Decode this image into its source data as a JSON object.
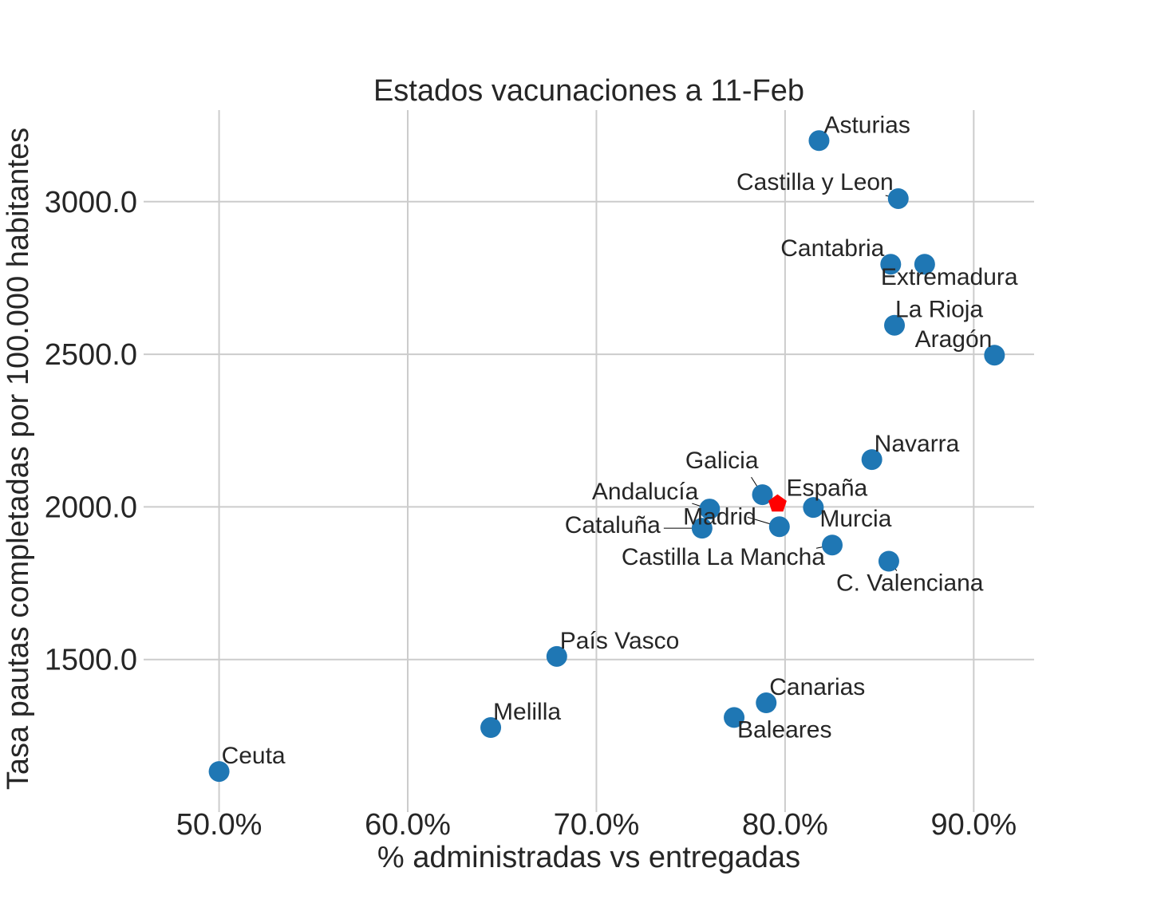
{
  "chart_data": {
    "type": "scatter",
    "title": "Estados vacunaciones a 11-Feb",
    "xlabel": "% administradas vs entregadas",
    "ylabel": "Tasa pautas completadas por 100.000 habitantes",
    "xlim": [
      46,
      93.2
    ],
    "ylim": [
      1000,
      3300
    ],
    "x_ticks": [
      50,
      60,
      70,
      80,
      90
    ],
    "x_tick_labels": [
      "50.0%",
      "60.0%",
      "70.0%",
      "80.0%",
      "90.0%"
    ],
    "y_ticks": [
      1500,
      2000,
      2500,
      3000
    ],
    "y_tick_labels": [
      "1500.0",
      "2000.0",
      "2500.0",
      "3000.0"
    ],
    "grid": true,
    "colors": {
      "point": "#1f77b4",
      "highlight": "#ff0000"
    },
    "points": [
      {
        "label": "Asturias",
        "x": 81.8,
        "y": 3200,
        "highlight": false
      },
      {
        "label": "Castilla y Leon",
        "x": 86.0,
        "y": 3010,
        "highlight": false
      },
      {
        "label": "Cantabria",
        "x": 85.6,
        "y": 2795,
        "highlight": false
      },
      {
        "label": "Extremadura",
        "x": 87.4,
        "y": 2795,
        "highlight": false
      },
      {
        "label": "La Rioja",
        "x": 85.8,
        "y": 2595,
        "highlight": false
      },
      {
        "label": "Aragón",
        "x": 91.1,
        "y": 2497,
        "highlight": false
      },
      {
        "label": "Navarra",
        "x": 84.6,
        "y": 2155,
        "highlight": false
      },
      {
        "label": "Galicia",
        "x": 78.8,
        "y": 2040,
        "highlight": false
      },
      {
        "label": "España",
        "x": 79.6,
        "y": 2010,
        "highlight": true
      },
      {
        "label": "Andalucía",
        "x": 76.0,
        "y": 1993,
        "highlight": false
      },
      {
        "label": "Murcia",
        "x": 81.5,
        "y": 1998,
        "highlight": false
      },
      {
        "label": "Madrid",
        "x": 79.7,
        "y": 1935,
        "highlight": false
      },
      {
        "label": "Cataluña",
        "x": 75.6,
        "y": 1930,
        "highlight": false
      },
      {
        "label": "Castilla La Mancha",
        "x": 82.5,
        "y": 1875,
        "highlight": false
      },
      {
        "label": "C. Valenciana",
        "x": 85.5,
        "y": 1822,
        "highlight": false
      },
      {
        "label": "País Vasco",
        "x": 67.9,
        "y": 1510,
        "highlight": false
      },
      {
        "label": "Canarias",
        "x": 79.0,
        "y": 1358,
        "highlight": false
      },
      {
        "label": "Baleares",
        "x": 77.3,
        "y": 1310,
        "highlight": false
      },
      {
        "label": "Melilla",
        "x": 64.4,
        "y": 1277,
        "highlight": false
      },
      {
        "label": "Ceuta",
        "x": 50.0,
        "y": 1133,
        "highlight": false
      }
    ]
  }
}
